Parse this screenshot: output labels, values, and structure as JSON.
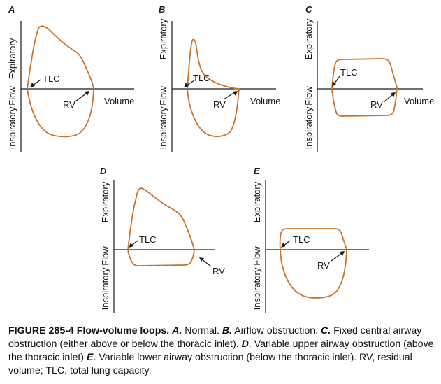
{
  "axis_labels": {
    "expiratory": "Expiratory",
    "flow": "Flow",
    "inspiratory": "Inspiratory",
    "volume": "Volume"
  },
  "annotations": {
    "tlc": "TLC",
    "rv": "RV"
  },
  "panels": [
    {
      "letter": "A",
      "description": "Normal"
    },
    {
      "letter": "B",
      "description": "Airflow obstruction"
    },
    {
      "letter": "C",
      "description": "Fixed central airway obstruction (either above or below the thoracic inlet)"
    },
    {
      "letter": "D",
      "description": "Variable upper airway obstruction (above the thoracic inlet)"
    },
    {
      "letter": "E",
      "description": "Variable lower airway obstruction (below the thoracic inlet)"
    }
  ],
  "caption": {
    "figure": "FIGURE 285-4 Flow-volume loops.",
    "a_letter": "A.",
    "a_text": " Normal. ",
    "b_letter": "B.",
    "b_text": " Airflow obstruction. ",
    "c_letter": "C.",
    "c_text": " Fixed central airway obstruction (either above or below the thoracic inlet). ",
    "d_letter": "D",
    "d_text": ". Variable upper airway obstruction (above the thoracic inlet) ",
    "e_letter": "E",
    "e_text": ". Variable lower airway obstruction (below the thoracic inlet). RV, residual volume; TLC, total lung capacity."
  },
  "colors": {
    "loop": "#c8742a",
    "axis": "#1a1a1a"
  }
}
